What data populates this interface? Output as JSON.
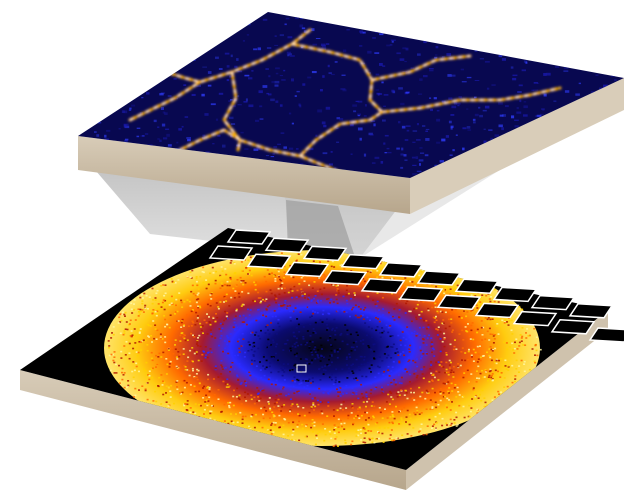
{
  "figure": {
    "kind": "3d-layered-micrograph",
    "layers": [
      {
        "name": "zoomed-network-map",
        "palette": [
          "#0a0a3a",
          "#1a1ab0",
          "#2f3dff",
          "#ff2a1a",
          "#ffb400",
          "#ffffff"
        ]
      },
      {
        "name": "circular-intensity-map",
        "palette": [
          "#000000",
          "#0d0d80",
          "#2c2cff",
          "#b01800",
          "#ff6a00",
          "#ffd000",
          "#fff6a0"
        ]
      }
    ],
    "slab_color": "#c7b8a2",
    "grid_cells": {
      "color": "#000000",
      "border": "#ffffff"
    }
  }
}
